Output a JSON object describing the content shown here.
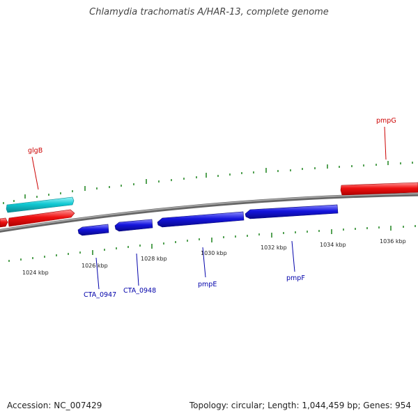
{
  "title": "Chlamydia trachomatis A/HAR-13, complete genome",
  "footer": {
    "accession": "Accession: NC_007429",
    "summary": "Topology: circular; Length: 1,044,459 bp; Genes: 954"
  },
  "colors": {
    "forward_gene": "#ee1111",
    "reverse_gene": "#1515dd",
    "rna_gene": "#11c8d2",
    "backbone": "#888888",
    "ticks": "#2a8a2a",
    "forward_label": "#cc0000",
    "reverse_label": "#0000aa"
  },
  "scale_labels": [
    "1024 kbp",
    "1026 kbp",
    "1028 kbp",
    "1030 kbp",
    "1032 kbp",
    "1034 kbp",
    "1036 kbp"
  ],
  "gene_labels": {
    "glgB": "glgB",
    "pmpG": "pmpG",
    "CTA_0947": "CTA_0947",
    "CTA_0948": "CTA_0948",
    "pmpE": "pmpE",
    "pmpF": "pmpF"
  }
}
